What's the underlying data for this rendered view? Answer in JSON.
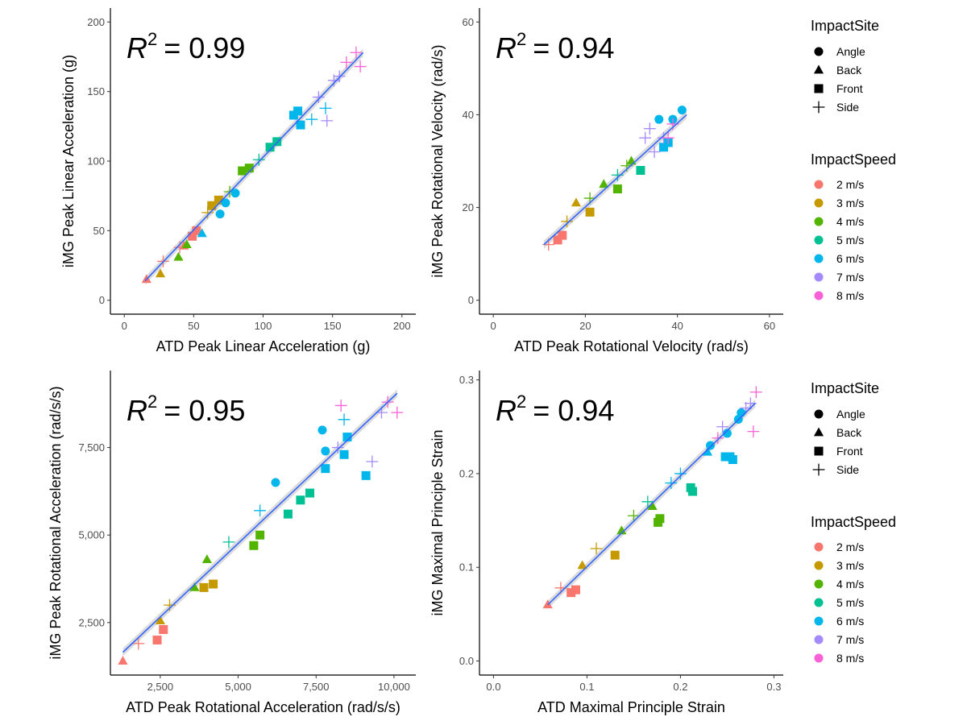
{
  "chart_data": [
    {
      "type": "scatter",
      "xlabel": "ATD Peak Linear Acceleration (g)",
      "ylabel": "iMG Peak Linear Acceleration (g)",
      "annotation": {
        "r2_symbol": "R",
        "r2_exp": "2",
        "r2_value": "= 0.99"
      },
      "xlim": [
        -10,
        210
      ],
      "ylim": [
        -10,
        210
      ],
      "xticks": [
        0,
        50,
        100,
        150,
        200
      ],
      "yticks": [
        0,
        50,
        100,
        150,
        200
      ],
      "xtick_labels": [
        "0",
        "50",
        "100",
        "150",
        "200"
      ],
      "ytick_labels": [
        "0",
        "50",
        "100",
        "150",
        "200"
      ],
      "fit": [
        [
          15,
          14
        ],
        [
          172,
          178
        ]
      ],
      "points": [
        [
          16,
          15,
          "Back",
          "2 m/s"
        ],
        [
          43,
          39,
          "Back",
          "2 m/s"
        ],
        [
          49,
          46,
          "Front",
          "2 m/s"
        ],
        [
          52,
          50,
          "Front",
          "2 m/s"
        ],
        [
          40,
          38,
          "Side",
          "2 m/s"
        ],
        [
          28,
          28,
          "Side",
          "2 m/s"
        ],
        [
          26,
          19,
          "Back",
          "3 m/s"
        ],
        [
          63,
          68,
          "Front",
          "3 m/s"
        ],
        [
          68,
          72,
          "Front",
          "3 m/s"
        ],
        [
          66,
          70,
          "Side",
          "3 m/s"
        ],
        [
          60,
          63,
          "Side",
          "3 m/s"
        ],
        [
          39,
          31,
          "Back",
          "4 m/s"
        ],
        [
          45,
          40,
          "Back",
          "4 m/s"
        ],
        [
          85,
          93,
          "Front",
          "4 m/s"
        ],
        [
          90,
          95,
          "Front",
          "4 m/s"
        ],
        [
          76,
          78,
          "Side",
          "4 m/s"
        ],
        [
          105,
          110,
          "Front",
          "5 m/s"
        ],
        [
          110,
          114,
          "Front",
          "5 m/s"
        ],
        [
          97,
          101,
          "Side",
          "5 m/s"
        ],
        [
          56,
          48,
          "Back",
          "6 m/s"
        ],
        [
          69,
          62,
          "Angle",
          "6 m/s"
        ],
        [
          73,
          70,
          "Angle",
          "6 m/s"
        ],
        [
          80,
          77,
          "Angle",
          "6 m/s"
        ],
        [
          122,
          133,
          "Front",
          "6 m/s"
        ],
        [
          127,
          126,
          "Front",
          "6 m/s"
        ],
        [
          125,
          136,
          "Front",
          "6 m/s"
        ],
        [
          145,
          138,
          "Side",
          "6 m/s"
        ],
        [
          135,
          130,
          "Side",
          "6 m/s"
        ],
        [
          140,
          146,
          "Side",
          "7 m/s"
        ],
        [
          146,
          129,
          "Side",
          "7 m/s"
        ],
        [
          151,
          158,
          "Side",
          "7 m/s"
        ],
        [
          155,
          161,
          "Side",
          "7 m/s"
        ],
        [
          160,
          171,
          "Side",
          "8 m/s"
        ],
        [
          167,
          178,
          "Side",
          "8 m/s"
        ],
        [
          170,
          168,
          "Side",
          "8 m/s"
        ]
      ]
    },
    {
      "type": "scatter",
      "xlabel": "ATD Peak Rotational Velocity (rad/s)",
      "ylabel": "iMG Peak Rotational Velocity (rad/s)",
      "annotation": {
        "r2_symbol": "R",
        "r2_exp": "2",
        "r2_value": "= 0.94"
      },
      "xlim": [
        -3,
        63
      ],
      "ylim": [
        -3,
        63
      ],
      "xticks": [
        0,
        20,
        40,
        60
      ],
      "yticks": [
        0,
        20,
        40,
        60
      ],
      "xtick_labels": [
        "0",
        "20",
        "40",
        "60"
      ],
      "ytick_labels": [
        "0",
        "20",
        "40",
        "60"
      ],
      "fit": [
        [
          11,
          12
        ],
        [
          42,
          40
        ]
      ],
      "points": [
        [
          12,
          12,
          "Side",
          "2 m/s"
        ],
        [
          14,
          13,
          "Front",
          "2 m/s"
        ],
        [
          15,
          14,
          "Front",
          "2 m/s"
        ],
        [
          18,
          21,
          "Back",
          "3 m/s"
        ],
        [
          21,
          19,
          "Front",
          "3 m/s"
        ],
        [
          16,
          17,
          "Side",
          "3 m/s"
        ],
        [
          21,
          22,
          "Side",
          "4 m/s"
        ],
        [
          24,
          25,
          "Back",
          "4 m/s"
        ],
        [
          27,
          24,
          "Front",
          "4 m/s"
        ],
        [
          29,
          29,
          "Side",
          "4 m/s"
        ],
        [
          30,
          30,
          "Back",
          "4 m/s"
        ],
        [
          32,
          28,
          "Front",
          "5 m/s"
        ],
        [
          27,
          27,
          "Side",
          "5 m/s"
        ],
        [
          36,
          39,
          "Angle",
          "6 m/s"
        ],
        [
          41,
          41,
          "Angle",
          "6 m/s"
        ],
        [
          38,
          34,
          "Front",
          "6 m/s"
        ],
        [
          37,
          33,
          "Front",
          "6 m/s"
        ],
        [
          39,
          39,
          "Angle",
          "6 m/s"
        ],
        [
          33,
          35,
          "Side",
          "7 m/s"
        ],
        [
          34,
          37,
          "Side",
          "7 m/s"
        ],
        [
          35,
          32,
          "Side",
          "7 m/s"
        ],
        [
          37,
          35,
          "Side",
          "7 m/s"
        ],
        [
          38,
          35,
          "Side",
          "8 m/s"
        ],
        [
          39,
          38,
          "Side",
          "8 m/s"
        ]
      ]
    },
    {
      "type": "scatter",
      "xlabel": "ATD Peak Rotational Acceleration (rad/s/s)",
      "ylabel": "iMG Peak Rotational Acceleration (rad/s/s)",
      "annotation": {
        "r2_symbol": "R",
        "r2_exp": "2",
        "r2_value": "= 0.95"
      },
      "xlim": [
        900,
        10700
      ],
      "ylim": [
        1000,
        9700
      ],
      "xticks": [
        2500,
        5000,
        7500,
        10000
      ],
      "yticks": [
        2500,
        5000,
        7500
      ],
      "xtick_labels": [
        "2,500",
        "5,000",
        "7,500",
        "10,000"
      ],
      "ytick_labels": [
        "2,500",
        "5,000",
        "7,500"
      ],
      "fit": [
        [
          1300,
          1650
        ],
        [
          10100,
          9050
        ]
      ],
      "points": [
        [
          1300,
          1400,
          "Back",
          "2 m/s"
        ],
        [
          2400,
          2000,
          "Front",
          "2 m/s"
        ],
        [
          2600,
          2300,
          "Front",
          "2 m/s"
        ],
        [
          1800,
          1900,
          "Side",
          "2 m/s"
        ],
        [
          2500,
          2550,
          "Back",
          "3 m/s"
        ],
        [
          3900,
          3500,
          "Front",
          "3 m/s"
        ],
        [
          4200,
          3600,
          "Front",
          "3 m/s"
        ],
        [
          2800,
          3000,
          "Side",
          "3 m/s"
        ],
        [
          3600,
          3500,
          "Back",
          "4 m/s"
        ],
        [
          4000,
          4300,
          "Back",
          "4 m/s"
        ],
        [
          5500,
          4700,
          "Front",
          "4 m/s"
        ],
        [
          5700,
          5000,
          "Front",
          "4 m/s"
        ],
        [
          6600,
          5600,
          "Front",
          "5 m/s"
        ],
        [
          7000,
          6000,
          "Front",
          "5 m/s"
        ],
        [
          7300,
          6200,
          "Front",
          "5 m/s"
        ],
        [
          4700,
          4800,
          "Side",
          "5 m/s"
        ],
        [
          6200,
          6500,
          "Angle",
          "6 m/s"
        ],
        [
          7700,
          8000,
          "Angle",
          "6 m/s"
        ],
        [
          7800,
          7400,
          "Angle",
          "6 m/s"
        ],
        [
          7800,
          6900,
          "Front",
          "6 m/s"
        ],
        [
          8400,
          7300,
          "Front",
          "6 m/s"
        ],
        [
          8500,
          7800,
          "Front",
          "6 m/s"
        ],
        [
          9100,
          6700,
          "Front",
          "6 m/s"
        ],
        [
          5700,
          5700,
          "Side",
          "6 m/s"
        ],
        [
          8400,
          8300,
          "Side",
          "6 m/s"
        ],
        [
          8200,
          7500,
          "Side",
          "7 m/s"
        ],
        [
          9300,
          7100,
          "Side",
          "7 m/s"
        ],
        [
          9600,
          8500,
          "Side",
          "7 m/s"
        ],
        [
          8300,
          8700,
          "Side",
          "8 m/s"
        ],
        [
          9800,
          8800,
          "Side",
          "8 m/s"
        ],
        [
          10100,
          8500,
          "Side",
          "8 m/s"
        ]
      ]
    },
    {
      "type": "scatter",
      "xlabel": "ATD Maximal Principle Strain",
      "ylabel": "iMG Maximal Principle Strain",
      "annotation": {
        "r2_symbol": "R",
        "r2_exp": "2",
        "r2_value": "= 0.94"
      },
      "xlim": [
        -0.015,
        0.31
      ],
      "ylim": [
        -0.015,
        0.31
      ],
      "xticks": [
        0,
        0.1,
        0.2,
        0.3
      ],
      "yticks": [
        0,
        0.1,
        0.2,
        0.3
      ],
      "xtick_labels": [
        "0.0",
        "0.1",
        "0.2",
        "0.3"
      ],
      "ytick_labels": [
        "0.0",
        "0.1",
        "0.2",
        "0.3"
      ],
      "fit": [
        [
          0.058,
          0.06
        ],
        [
          0.28,
          0.275
        ]
      ],
      "points": [
        [
          0.058,
          0.06,
          "Back",
          "2 m/s"
        ],
        [
          0.083,
          0.073,
          "Front",
          "2 m/s"
        ],
        [
          0.088,
          0.076,
          "Front",
          "2 m/s"
        ],
        [
          0.072,
          0.078,
          "Side",
          "2 m/s"
        ],
        [
          0.095,
          0.102,
          "Back",
          "3 m/s"
        ],
        [
          0.13,
          0.113,
          "Front",
          "3 m/s"
        ],
        [
          0.11,
          0.12,
          "Side",
          "3 m/s"
        ],
        [
          0.137,
          0.139,
          "Back",
          "4 m/s"
        ],
        [
          0.17,
          0.165,
          "Back",
          "4 m/s"
        ],
        [
          0.176,
          0.148,
          "Front",
          "4 m/s"
        ],
        [
          0.178,
          0.152,
          "Front",
          "4 m/s"
        ],
        [
          0.15,
          0.155,
          "Side",
          "4 m/s"
        ],
        [
          0.211,
          0.185,
          "Front",
          "5 m/s"
        ],
        [
          0.213,
          0.181,
          "Front",
          "5 m/s"
        ],
        [
          0.165,
          0.17,
          "Side",
          "5 m/s"
        ],
        [
          0.229,
          0.223,
          "Back",
          "6 m/s"
        ],
        [
          0.232,
          0.23,
          "Angle",
          "6 m/s"
        ],
        [
          0.25,
          0.243,
          "Angle",
          "6 m/s"
        ],
        [
          0.262,
          0.258,
          "Angle",
          "6 m/s"
        ],
        [
          0.265,
          0.265,
          "Angle",
          "6 m/s"
        ],
        [
          0.248,
          0.218,
          "Front",
          "6 m/s"
        ],
        [
          0.253,
          0.218,
          "Front",
          "6 m/s"
        ],
        [
          0.256,
          0.215,
          "Front",
          "6 m/s"
        ],
        [
          0.19,
          0.19,
          "Side",
          "6 m/s"
        ],
        [
          0.2,
          0.2,
          "Side",
          "6 m/s"
        ],
        [
          0.245,
          0.25,
          "Side",
          "7 m/s"
        ],
        [
          0.27,
          0.27,
          "Side",
          "7 m/s"
        ],
        [
          0.275,
          0.275,
          "Side",
          "7 m/s"
        ],
        [
          0.24,
          0.238,
          "Side",
          "8 m/s"
        ],
        [
          0.278,
          0.245,
          "Side",
          "8 m/s"
        ],
        [
          0.281,
          0.287,
          "Side",
          "8 m/s"
        ]
      ]
    }
  ],
  "legend": {
    "site_title": "ImpactSite",
    "sites": [
      {
        "label": "Angle",
        "shape": "circle"
      },
      {
        "label": "Back",
        "shape": "triangle"
      },
      {
        "label": "Front",
        "shape": "square"
      },
      {
        "label": "Side",
        "shape": "plus"
      }
    ],
    "speed_title": "ImpactSpeed",
    "speeds": [
      {
        "label": "2 m/s",
        "color": "#F8766D"
      },
      {
        "label": "3 m/s",
        "color": "#C49A00"
      },
      {
        "label": "4 m/s",
        "color": "#53B400"
      },
      {
        "label": "5 m/s",
        "color": "#00C094"
      },
      {
        "label": "6 m/s",
        "color": "#00B6EB"
      },
      {
        "label": "7 m/s",
        "color": "#A58AFF"
      },
      {
        "label": "8 m/s",
        "color": "#FB61D7"
      }
    ]
  },
  "colors": {
    "fit_line": "#3366FF",
    "ci_band": "#BEBEBE"
  }
}
